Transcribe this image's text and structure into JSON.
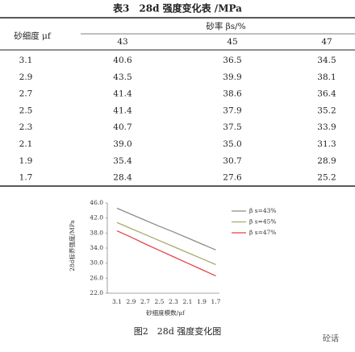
{
  "table": {
    "title": "表3　28d 强度变化表 /MPa",
    "row_header": "砂细度 μf",
    "group_header": "砂率 βs/%",
    "columns": [
      "43",
      "45",
      "47"
    ],
    "rows": [
      [
        "3.1",
        "40.6",
        "36.5",
        "34.5"
      ],
      [
        "2.9",
        "43.5",
        "39.9",
        "38.1"
      ],
      [
        "2.7",
        "41.4",
        "38.6",
        "36.4"
      ],
      [
        "2.5",
        "41.4",
        "37.9",
        "35.2"
      ],
      [
        "2.3",
        "40.7",
        "37.5",
        "33.9"
      ],
      [
        "2.1",
        "39.0",
        "35.0",
        "31.3"
      ],
      [
        "1.9",
        "35.4",
        "30.7",
        "28.9"
      ],
      [
        "1.7",
        "28.4",
        "27.6",
        "25.2"
      ]
    ]
  },
  "chart_data": {
    "type": "line",
    "caption": "图2　28d 强度变化图",
    "x_label": "砂细度模数/μf",
    "y_label": "28d标养强度/MPa",
    "categories": [
      "3.1",
      "2.9",
      "2.7",
      "2.5",
      "2.3",
      "2.1",
      "1.9",
      "1.7"
    ],
    "series": [
      {
        "name": "β s=43%",
        "color": "#8c8c8c",
        "values": [
          44.6,
          43.0,
          41.4,
          39.8,
          38.3,
          36.7,
          35.1,
          33.5
        ]
      },
      {
        "name": "β s=45%",
        "color": "#a8aa6e",
        "values": [
          40.8,
          39.2,
          37.6,
          36.0,
          34.4,
          32.8,
          31.2,
          29.6
        ]
      },
      {
        "name": "β s=47%",
        "color": "#e2444c",
        "values": [
          38.6,
          36.9,
          35.1,
          33.4,
          31.7,
          30.0,
          28.3,
          26.6
        ]
      }
    ],
    "ylim": [
      22,
      46
    ],
    "yticks": [
      {
        "value": 22,
        "label": "22.0"
      },
      {
        "value": 26,
        "label": "26.0"
      },
      {
        "value": 30,
        "label": "30.0"
      },
      {
        "value": 34,
        "label": "34.0"
      },
      {
        "value": 38,
        "label": "38.0"
      },
      {
        "value": 42,
        "label": "42.0"
      },
      {
        "value": 46,
        "label": "46.0"
      }
    ],
    "legend": "right"
  },
  "watermark": "砼话"
}
